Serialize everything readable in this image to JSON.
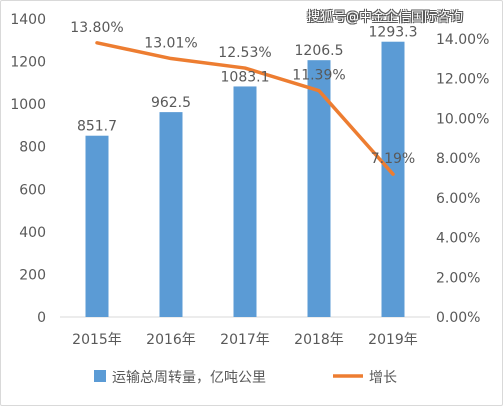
{
  "watermark": "搜狐号@中金企信国际咨询",
  "chart_data": {
    "type": "bar",
    "categories": [
      "2015年",
      "2016年",
      "2017年",
      "2018年",
      "2019年"
    ],
    "series": [
      {
        "name": "运输总周转量，亿吨公里",
        "type": "bar",
        "axis": "left",
        "values": [
          851.7,
          962.5,
          1083.1,
          1206.5,
          1293.3
        ],
        "labels": [
          "851.7",
          "962.5",
          "1083.1",
          "1206.5",
          "1293.3"
        ]
      },
      {
        "name": "增长",
        "type": "line",
        "axis": "right",
        "values": [
          13.8,
          13.01,
          12.53,
          11.39,
          7.19
        ],
        "labels": [
          "13.80%",
          "13.01%",
          "12.53%",
          "11.39%",
          "7.19%"
        ]
      }
    ],
    "y_left": {
      "min": 0,
      "max": 1400,
      "step": 200,
      "ticks": [
        "0",
        "200",
        "400",
        "600",
        "800",
        "1000",
        "1200",
        "1400"
      ]
    },
    "y_right": {
      "min": 0,
      "max": 15,
      "step": 2,
      "ticks": [
        "0.00%",
        "2.00%",
        "4.00%",
        "6.00%",
        "8.00%",
        "10.00%",
        "12.00%",
        "14.00%"
      ]
    },
    "grid": false,
    "legend_position": "bottom",
    "colors": {
      "bar": "#5b9bd5",
      "line": "#ed7d31",
      "text": "#595959",
      "axis": "#d9d9d9"
    }
  }
}
